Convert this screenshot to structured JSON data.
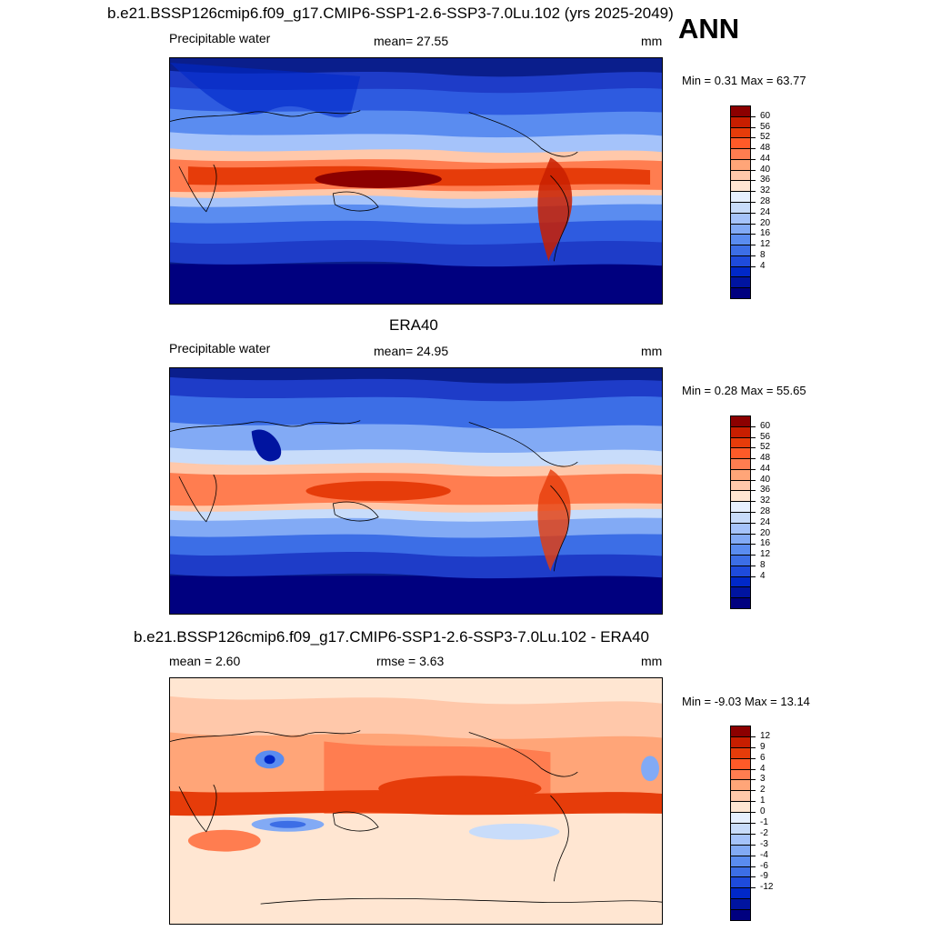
{
  "figure": {
    "title": "b.e21.BSSP126cmip6.f09_g17.CMIP6-SSP1-2.6-SSP3-7.0Lu.102 (yrs 2025-2049)",
    "season": "ANN"
  },
  "panels": [
    {
      "heading": "",
      "left": "Precipitable water",
      "center": "mean=  27.55",
      "right": "mm",
      "minmax": "Min =   0.31 Max =  63.77",
      "colorbar_colors": [
        "#00007f",
        "#0014a0",
        "#0028c8",
        "#1e4bdc",
        "#3c6ee6",
        "#5a8cf0",
        "#82aaf5",
        "#a5c3fa",
        "#c8dcfa",
        "#e6f0ff",
        "#ffe6d2",
        "#ffc8aa",
        "#ffa578",
        "#ff7d50",
        "#ff5a28",
        "#e63c0a",
        "#c81e00",
        "#8c0000"
      ],
      "colorbar_labels": [
        "60",
        "56",
        "52",
        "48",
        "44",
        "40",
        "36",
        "32",
        "28",
        "24",
        "20",
        "16",
        "12",
        "8",
        "4"
      ]
    },
    {
      "heading": "ERA40",
      "left": "Precipitable water",
      "center": "mean=  24.95",
      "right": "mm",
      "minmax": "Min =   0.28 Max =  55.65",
      "colorbar_colors": [
        "#00007f",
        "#0014a0",
        "#0028c8",
        "#1e4bdc",
        "#3c6ee6",
        "#5a8cf0",
        "#82aaf5",
        "#a5c3fa",
        "#c8dcfa",
        "#e6f0ff",
        "#ffe6d2",
        "#ffc8aa",
        "#ffa578",
        "#ff7d50",
        "#ff5a28",
        "#e63c0a",
        "#c81e00",
        "#8c0000"
      ],
      "colorbar_labels": [
        "60",
        "56",
        "52",
        "48",
        "44",
        "40",
        "36",
        "32",
        "28",
        "24",
        "20",
        "16",
        "12",
        "8",
        "4"
      ]
    },
    {
      "heading": "b.e21.BSSP126cmip6.f09_g17.CMIP6-SSP1-2.6-SSP3-7.0Lu.102 - ERA40",
      "left": "mean =   2.60",
      "center": "rmse =   3.63",
      "right": "mm",
      "minmax": "Min =  -9.03 Max =  13.14",
      "colorbar_colors": [
        "#00007f",
        "#0014a0",
        "#0028c8",
        "#1e4bdc",
        "#3c6ee6",
        "#5a8cf0",
        "#82aaf5",
        "#a5c3fa",
        "#c8dcfa",
        "#e6f0ff",
        "#ffe6d2",
        "#ffc8aa",
        "#ffa578",
        "#ff7d50",
        "#ff5a28",
        "#e63c0a",
        "#c81e00",
        "#8c0000"
      ],
      "colorbar_labels": [
        "12",
        "9",
        "6",
        "4",
        "3",
        "2",
        "1",
        "0",
        "-1",
        "-2",
        "-3",
        "-4",
        "-6",
        "-9",
        "-12"
      ]
    }
  ]
}
